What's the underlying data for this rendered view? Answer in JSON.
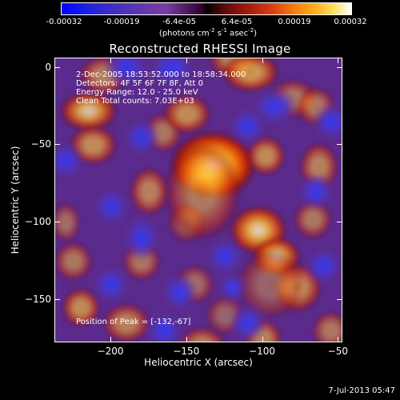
{
  "colorbar": {
    "ticks": [
      "-0.00032",
      "-0.00019",
      "-6.4e-05",
      "6.4e-05",
      "0.00019",
      "0.00032"
    ],
    "unit_prefix": "(photons cm",
    "unit_sup1": "-2",
    "unit_mid": " s",
    "unit_sup2": "-1",
    "unit_mid2": " asec",
    "unit_sup3": "-2",
    "unit_suffix": ")"
  },
  "info": {
    "time_range": "2-Dec-2005 18:53:52.000 to 18:58:34.000",
    "detectors": "Detectors: 4F 5F 6F 7F 8F, Att 0",
    "energy": "Energy Range: 12.0 - 25.0 keV",
    "clean": "Clean    Total counts: 7.03E+03",
    "peak": "Position of Peak = [-132,-67]"
  },
  "timestamp": "7-Jul-2013 05:47",
  "chart_data": {
    "type": "heatmap",
    "title": "Reconstructed RHESSI Image",
    "xlabel": "Heliocentric X (arcsec)",
    "ylabel": "Heliocentric Y (arcsec)",
    "xlim": [
      -237,
      -47
    ],
    "ylim": [
      -178,
      6
    ],
    "xticks": [
      -200,
      -150,
      -100,
      -50
    ],
    "yticks": [
      0,
      -50,
      -100,
      -150
    ],
    "zlim": [
      -0.00032,
      0.00032
    ],
    "peak": [
      -132,
      -67
    ],
    "blobs": [
      [
        -133,
        -63,
        18,
        14,
        0.00032
      ],
      [
        -103,
        -105,
        12,
        10,
        0.00026
      ],
      [
        -91,
        -122,
        10,
        8,
        0.00024
      ],
      [
        -77,
        -142,
        10,
        10,
        0.0002
      ],
      [
        -120,
        6,
        10,
        8,
        0.00018
      ],
      [
        -108,
        -3,
        12,
        8,
        0.00022
      ],
      [
        -67,
        -98,
        8,
        8,
        0.00016
      ],
      [
        -63,
        -64,
        8,
        10,
        0.00018
      ],
      [
        -98,
        -57,
        8,
        8,
        0.0002
      ],
      [
        -215,
        -28,
        12,
        8,
        0.00024
      ],
      [
        -212,
        -50,
        10,
        8,
        0.0002
      ],
      [
        -175,
        -80,
        8,
        10,
        0.00018
      ],
      [
        -166,
        -42,
        8,
        8,
        0.00016
      ],
      [
        -150,
        -30,
        10,
        8,
        0.0002
      ],
      [
        -180,
        -125,
        8,
        8,
        0.00016
      ],
      [
        -225,
        -125,
        8,
        8,
        0.00016
      ],
      [
        -220,
        -155,
        8,
        8,
        0.0002
      ],
      [
        -190,
        -165,
        10,
        8,
        0.00018
      ],
      [
        -140,
        -180,
        10,
        8,
        0.00018
      ],
      [
        -100,
        -175,
        8,
        8,
        0.00018
      ],
      [
        -55,
        -170,
        8,
        8,
        0.00016
      ],
      [
        -230,
        -100,
        6,
        8,
        0.00014
      ],
      [
        -205,
        -5,
        10,
        8,
        0.00018
      ],
      [
        -80,
        -20,
        10,
        8,
        0.00016
      ],
      [
        -150,
        -100,
        8,
        8,
        0.00014
      ],
      [
        -145,
        -140,
        8,
        8,
        0.00014
      ],
      [
        -65,
        -25,
        8,
        8,
        0.00016
      ],
      [
        -125,
        -160,
        8,
        8,
        0.00012
      ],
      [
        -140,
        -80,
        16,
        20,
        0.00016
      ],
      [
        -95,
        -140,
        14,
        14,
        0.00012
      ],
      [
        -190,
        0,
        10,
        8,
        -0.00026
      ],
      [
        -160,
        0,
        10,
        8,
        -0.00024
      ],
      [
        -92,
        -25,
        10,
        8,
        -0.00026
      ],
      [
        -110,
        -38,
        8,
        8,
        -0.0002
      ],
      [
        -125,
        -122,
        8,
        8,
        -0.00026
      ],
      [
        -180,
        -110,
        8,
        10,
        -0.00024
      ],
      [
        -200,
        -140,
        8,
        8,
        -0.00022
      ],
      [
        -155,
        -145,
        8,
        8,
        -0.0003
      ],
      [
        -120,
        -142,
        6,
        6,
        -0.00028
      ],
      [
        -60,
        -128,
        8,
        8,
        -0.00024
      ],
      [
        -65,
        -80,
        8,
        8,
        -0.00024
      ],
      [
        -55,
        -35,
        8,
        8,
        -0.00022
      ],
      [
        -180,
        -45,
        8,
        8,
        -0.0002
      ],
      [
        -230,
        -60,
        8,
        8,
        -0.0002
      ],
      [
        -200,
        -90,
        8,
        8,
        -0.00018
      ],
      [
        -165,
        -170,
        8,
        8,
        -0.0002
      ],
      [
        -110,
        -165,
        8,
        8,
        -0.0002
      ]
    ]
  }
}
